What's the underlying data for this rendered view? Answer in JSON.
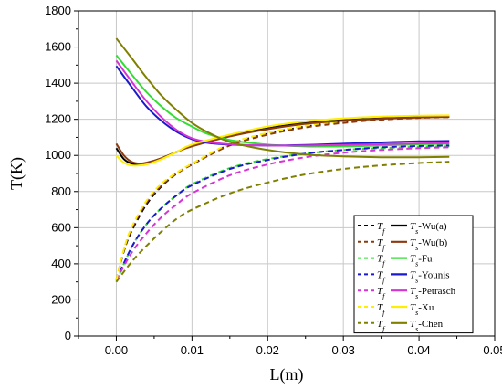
{
  "chart_data": {
    "type": "line",
    "xlabel": "L(m)",
    "ylabel": "T(K)",
    "xlim": [
      -0.005,
      0.05
    ],
    "ylim": [
      0,
      1800
    ],
    "x_ticks": [
      0.0,
      0.01,
      0.02,
      0.03,
      0.04,
      0.05
    ],
    "x_tick_labels": [
      "0.00",
      "0.01",
      "0.02",
      "0.03",
      "0.04",
      "0.05"
    ],
    "y_ticks": [
      0,
      200,
      400,
      600,
      800,
      1000,
      1200,
      1400,
      1600,
      1800
    ],
    "y_tick_labels": [
      "0",
      "200",
      "400",
      "600",
      "800",
      "1000",
      "1200",
      "1400",
      "1600",
      "1800"
    ],
    "grid": true,
    "legend_position": "bottom-right",
    "legend": [
      {
        "model": "Wu(a)",
        "color": "#000000",
        "tf": "T_f",
        "ts": "T_s",
        "suffix": "-Wu(a)"
      },
      {
        "model": "Wu(b)",
        "color": "#8b3a0e",
        "tf": "T_f",
        "ts": "T_s",
        "suffix": "-Wu(b)"
      },
      {
        "model": "Fu",
        "color": "#33dd33",
        "tf": "T_f",
        "ts": "T_s",
        "suffix": "-Fu"
      },
      {
        "model": "Younis",
        "color": "#1a1acc",
        "tf": "T_f",
        "ts": "T_s",
        "suffix": "-Younis"
      },
      {
        "model": "Petrasch",
        "color": "#d633d6",
        "tf": "T_f",
        "ts": "T_s",
        "suffix": "-Petrasch"
      },
      {
        "model": "Xu",
        "color": "#ffee00",
        "tf": "T_f",
        "ts": "T_s",
        "suffix": "-Xu"
      },
      {
        "model": "Chen",
        "color": "#808000",
        "tf": "T_f",
        "ts": "T_s",
        "suffix": "-Chen"
      }
    ],
    "series": [
      {
        "name": "T_f-Wu(a)",
        "style": "dashed",
        "color": "#000000",
        "x": [
          0,
          0.001,
          0.002,
          0.004,
          0.006,
          0.008,
          0.01,
          0.015,
          0.02,
          0.025,
          0.03,
          0.035,
          0.04,
          0.044
        ],
        "y": [
          310,
          470,
          580,
          730,
          830,
          900,
          950,
          1060,
          1120,
          1160,
          1185,
          1200,
          1210,
          1215
        ]
      },
      {
        "name": "T_f-Wu(b)",
        "style": "dashed",
        "color": "#8b3a0e",
        "x": [
          0,
          0.001,
          0.002,
          0.004,
          0.006,
          0.008,
          0.01,
          0.015,
          0.02,
          0.025,
          0.03,
          0.035,
          0.04,
          0.044
        ],
        "y": [
          310,
          475,
          590,
          740,
          835,
          900,
          950,
          1055,
          1115,
          1155,
          1180,
          1198,
          1208,
          1212
        ]
      },
      {
        "name": "T_f-Fu",
        "style": "dashed",
        "color": "#33dd33",
        "x": [
          0,
          0.002,
          0.004,
          0.006,
          0.008,
          0.01,
          0.015,
          0.02,
          0.025,
          0.03,
          0.035,
          0.04,
          0.044
        ],
        "y": [
          300,
          490,
          620,
          710,
          780,
          840,
          930,
          980,
          1010,
          1030,
          1040,
          1048,
          1050
        ]
      },
      {
        "name": "T_f-Younis",
        "style": "dashed",
        "color": "#1a1acc",
        "x": [
          0,
          0.002,
          0.004,
          0.006,
          0.008,
          0.01,
          0.015,
          0.02,
          0.025,
          0.03,
          0.035,
          0.04,
          0.044
        ],
        "y": [
          310,
          490,
          620,
          710,
          780,
          835,
          925,
          975,
          1010,
          1030,
          1045,
          1052,
          1055
        ]
      },
      {
        "name": "T_f-Petrasch",
        "style": "dashed",
        "color": "#d633d6",
        "x": [
          0,
          0.002,
          0.004,
          0.006,
          0.008,
          0.01,
          0.015,
          0.02,
          0.025,
          0.03,
          0.035,
          0.04,
          0.044
        ],
        "y": [
          310,
          460,
          570,
          660,
          730,
          790,
          890,
          950,
          990,
          1015,
          1030,
          1040,
          1045
        ]
      },
      {
        "name": "T_f-Xu",
        "style": "dashed",
        "color": "#ffee00",
        "x": [
          0,
          0.001,
          0.002,
          0.004,
          0.006,
          0.008,
          0.01,
          0.015,
          0.02,
          0.025,
          0.03,
          0.035,
          0.04,
          0.044
        ],
        "y": [
          310,
          480,
          600,
          750,
          845,
          905,
          955,
          1065,
          1125,
          1165,
          1190,
          1205,
          1215,
          1220
        ]
      },
      {
        "name": "T_f-Chen",
        "style": "dashed",
        "color": "#808000",
        "x": [
          0,
          0.002,
          0.004,
          0.006,
          0.008,
          0.01,
          0.015,
          0.02,
          0.025,
          0.03,
          0.035,
          0.04,
          0.044
        ],
        "y": [
          300,
          410,
          500,
          580,
          650,
          700,
          790,
          850,
          895,
          925,
          945,
          958,
          965
        ]
      },
      {
        "name": "T_s-Wu(a)",
        "style": "solid",
        "color": "#000000",
        "x": [
          0,
          0.001,
          0.002,
          0.003,
          0.004,
          0.006,
          0.008,
          0.01,
          0.015,
          0.02,
          0.025,
          0.03,
          0.035,
          0.04,
          0.044
        ],
        "y": [
          1040,
          980,
          955,
          950,
          955,
          985,
          1020,
          1055,
          1110,
          1150,
          1180,
          1195,
          1205,
          1212,
          1215
        ]
      },
      {
        "name": "T_s-Wu(b)",
        "style": "solid",
        "color": "#8b3a0e",
        "x": [
          0,
          0.001,
          0.002,
          0.003,
          0.004,
          0.006,
          0.008,
          0.01,
          0.015,
          0.02,
          0.025,
          0.03,
          0.035,
          0.04,
          0.044
        ],
        "y": [
          1065,
          1000,
          965,
          955,
          960,
          985,
          1020,
          1050,
          1105,
          1145,
          1175,
          1192,
          1203,
          1210,
          1213
        ]
      },
      {
        "name": "T_s-Fu",
        "style": "solid",
        "color": "#33dd33",
        "x": [
          0,
          0.002,
          0.004,
          0.006,
          0.008,
          0.01,
          0.012,
          0.015,
          0.02,
          0.025,
          0.03,
          0.035,
          0.04,
          0.044
        ],
        "y": [
          1555,
          1450,
          1350,
          1270,
          1205,
          1160,
          1120,
          1085,
          1060,
          1050,
          1050,
          1055,
          1062,
          1065
        ]
      },
      {
        "name": "T_s-Younis",
        "style": "solid",
        "color": "#1a1acc",
        "x": [
          0,
          0.002,
          0.004,
          0.006,
          0.008,
          0.01,
          0.012,
          0.015,
          0.02,
          0.025,
          0.03,
          0.035,
          0.04,
          0.044
        ],
        "y": [
          1495,
          1380,
          1270,
          1190,
          1130,
          1090,
          1070,
          1060,
          1055,
          1058,
          1065,
          1072,
          1078,
          1080
        ]
      },
      {
        "name": "T_s-Petrasch",
        "style": "solid",
        "color": "#d633d6",
        "x": [
          0,
          0.002,
          0.004,
          0.006,
          0.008,
          0.01,
          0.012,
          0.015,
          0.02,
          0.025,
          0.03,
          0.035,
          0.04,
          0.044
        ],
        "y": [
          1525,
          1410,
          1300,
          1210,
          1140,
          1095,
          1075,
          1062,
          1055,
          1055,
          1058,
          1062,
          1066,
          1068
        ]
      },
      {
        "name": "T_s-Xu",
        "style": "solid",
        "color": "#ffee00",
        "x": [
          0,
          0.001,
          0.002,
          0.003,
          0.004,
          0.006,
          0.008,
          0.01,
          0.015,
          0.02,
          0.025,
          0.03,
          0.035,
          0.04,
          0.044
        ],
        "y": [
          1000,
          960,
          945,
          945,
          950,
          980,
          1020,
          1060,
          1115,
          1160,
          1188,
          1205,
          1215,
          1220,
          1222
        ]
      },
      {
        "name": "T_s-Chen",
        "style": "solid",
        "color": "#808000",
        "x": [
          0,
          0.002,
          0.004,
          0.006,
          0.008,
          0.01,
          0.012,
          0.015,
          0.02,
          0.025,
          0.03,
          0.035,
          0.04,
          0.044
        ],
        "y": [
          1648,
          1540,
          1430,
          1330,
          1250,
          1180,
          1130,
          1075,
          1030,
          1005,
          995,
          990,
          990,
          992
        ]
      }
    ]
  }
}
